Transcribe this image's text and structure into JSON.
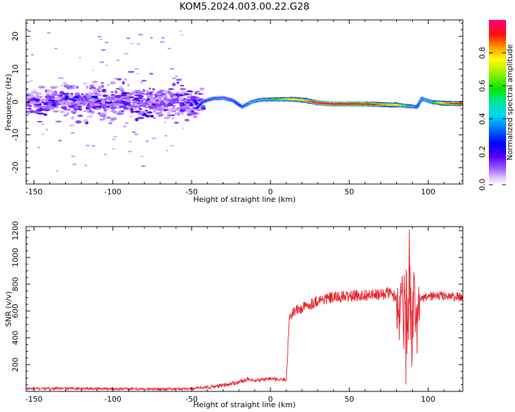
{
  "title": "KOM5.2024.003.00.22.G28",
  "chart_data": [
    {
      "type": "heatmap",
      "xlabel": "Height of straight line (km)",
      "ylabel": "Frequency (Hz)",
      "xlim": [
        -155,
        122
      ],
      "ylim": [
        -25,
        25
      ],
      "xticks": [
        -150,
        -100,
        -50,
        0,
        50,
        100
      ],
      "yticks": [
        -20,
        -10,
        0,
        10,
        20
      ],
      "colorbar": {
        "label": "Normalized spectral amplitude",
        "range": [
          0,
          1
        ],
        "ticks": [
          "0.0",
          "0.2",
          "0.4",
          "0.6",
          "0.8"
        ],
        "tick_values": [
          0,
          0.2,
          0.4,
          0.6,
          0.8
        ]
      },
      "track": [
        {
          "x": -47,
          "y": -2,
          "a": 0.25
        },
        {
          "x": -43,
          "y": 0,
          "a": 0.3
        },
        {
          "x": -37,
          "y": 1,
          "a": 0.35
        },
        {
          "x": -30,
          "y": 1.2,
          "a": 0.4
        },
        {
          "x": -24,
          "y": 0.5,
          "a": 0.35
        },
        {
          "x": -18,
          "y": -1.5,
          "a": 0.3
        },
        {
          "x": -12,
          "y": 0,
          "a": 0.4
        },
        {
          "x": -7,
          "y": 0.6,
          "a": 0.45
        },
        {
          "x": 0,
          "y": 0.8,
          "a": 0.55
        },
        {
          "x": 8,
          "y": 0.8,
          "a": 0.65
        },
        {
          "x": 15,
          "y": 0.8,
          "a": 0.75
        },
        {
          "x": 22,
          "y": 0.5,
          "a": 0.8
        },
        {
          "x": 30,
          "y": -0.3,
          "a": 0.95
        },
        {
          "x": 40,
          "y": -0.6,
          "a": 1.0
        },
        {
          "x": 50,
          "y": -0.6,
          "a": 1.0
        },
        {
          "x": 60,
          "y": -0.6,
          "a": 0.95
        },
        {
          "x": 70,
          "y": -0.8,
          "a": 0.85
        },
        {
          "x": 80,
          "y": -0.9,
          "a": 0.75
        },
        {
          "x": 88,
          "y": -1.3,
          "a": 0.55
        },
        {
          "x": 93,
          "y": -1.5,
          "a": 0.35
        },
        {
          "x": 96,
          "y": 1.0,
          "a": 0.4
        },
        {
          "x": 102,
          "y": 0.0,
          "a": 0.5
        },
        {
          "x": 110,
          "y": -0.4,
          "a": 0.8
        },
        {
          "x": 116,
          "y": -0.5,
          "a": 0.9
        },
        {
          "x": 122,
          "y": -0.5,
          "a": 0.9
        }
      ]
    },
    {
      "type": "line",
      "xlabel": "Height of straight line (km)",
      "ylabel": "SNR (v/v)",
      "xlim": [
        -155,
        122
      ],
      "ylim": [
        0,
        1230
      ],
      "xticks": [
        -150,
        -100,
        -50,
        0,
        50,
        100
      ],
      "yticks": [
        200,
        400,
        600,
        800,
        1000,
        1200
      ],
      "color": "#e8242c",
      "series": [
        {
          "x": [
            -155,
            -140,
            -120,
            -100,
            -80,
            -60,
            -50,
            -40,
            -30,
            -20,
            -15,
            -10,
            -5,
            0,
            5,
            10,
            11,
            12,
            15,
            20,
            25,
            30,
            40,
            50,
            60,
            70,
            75,
            80,
            82,
            84,
            86,
            88,
            90,
            92,
            95,
            100,
            110,
            122
          ],
          "y": [
            20,
            22,
            22,
            20,
            18,
            18,
            22,
            30,
            45,
            70,
            90,
            75,
            90,
            95,
            85,
            90,
            300,
            560,
            600,
            620,
            650,
            680,
            700,
            710,
            720,
            720,
            740,
            700,
            560,
            850,
            480,
            900,
            560,
            400,
            680,
            710,
            715,
            700
          ]
        }
      ]
    }
  ]
}
